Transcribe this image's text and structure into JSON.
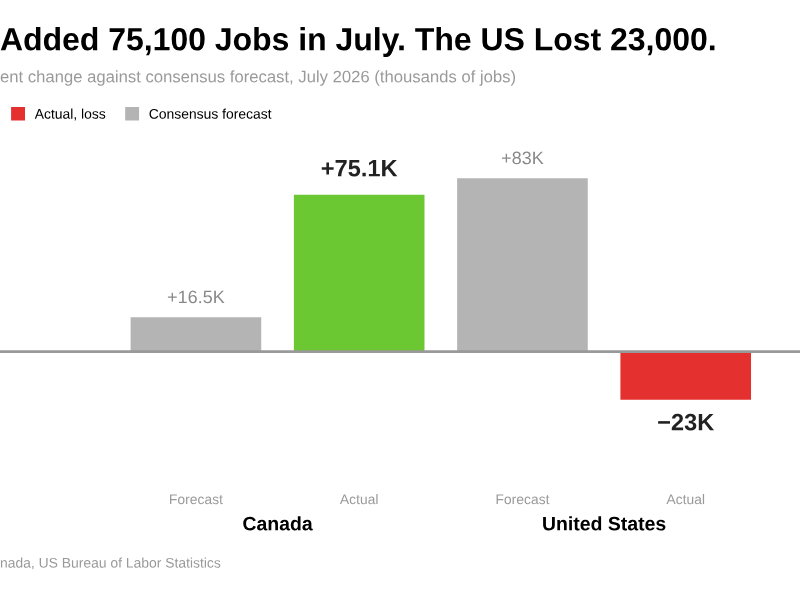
{
  "chart_data": {
    "type": "bar",
    "title": "Added 75,100 Jobs in July. The US Lost 23,000.",
    "subtitle": "ent change against consensus forecast, July 2026 (thousands of jobs)",
    "categories": [
      "Forecast",
      "Actual",
      "Forecast",
      "Actual"
    ],
    "series": [
      {
        "name": "Actual, loss",
        "color": "#e53030",
        "values": [
          null,
          null,
          null,
          -23
        ],
        "value_labels": [
          null,
          null,
          null,
          "−23K"
        ]
      },
      {
        "name": "Consensus forecast",
        "color": "#b4b4b4",
        "values": [
          16.5,
          null,
          83,
          null
        ],
        "value_labels": [
          "+16.5K",
          null,
          "+83K",
          null
        ]
      },
      {
        "color": "#6cc832",
        "values": [
          null,
          75.1,
          null,
          null
        ],
        "value_labels": [
          null,
          "+75.1K",
          null,
          null
        ]
      }
    ],
    "annotations": [
      "Canada",
      "United States",
      "nada, US Bureau of Labor Statistics"
    ],
    "legend": "top left"
  }
}
